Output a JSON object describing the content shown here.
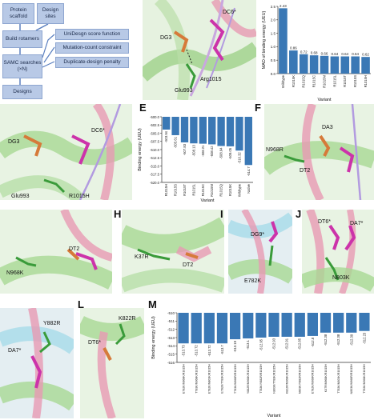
{
  "panel_letters": [
    "E",
    "F",
    "H",
    "I",
    "J",
    "L",
    "M"
  ],
  "flowchart": {
    "protein_scaffold": "Protein scaffold",
    "design_sites": "Design sites",
    "build_rotamers": "Build rotamers",
    "samc_searches": "SAMC searches (×N)",
    "designs": "Designs",
    "side_labels": [
      "UniDesgn score function",
      "Mutation-count constraint",
      "Duplicate-design penalty"
    ]
  },
  "structure_labels": {
    "b": [
      "DC6*",
      "DG3",
      "Arg1015",
      "Glu993"
    ],
    "d": [
      "DC6*",
      "DG3",
      "Glu993",
      "R1015H"
    ],
    "f": [
      "DA3",
      "N968R",
      "DT2"
    ],
    "g": [
      "DT2",
      "N968K"
    ],
    "h": [
      "K37R",
      "DT2"
    ],
    "i": [
      "DG9*",
      "E782K"
    ],
    "j": [
      "DT6*",
      "DA7*",
      "N803K"
    ],
    "k": [
      "Y882R",
      "DA7*"
    ],
    "l": [
      "K822R",
      "DT6*"
    ]
  },
  "chart_data": [
    {
      "type": "bar",
      "categories": [
        "Wildtype",
        "R1015K",
        "R1015Q",
        "R1015C",
        "R1015M",
        "R1015L",
        "R1015T",
        "R1015S",
        "R1015H"
      ],
      "values": [
        2.43,
        0.86,
        0.72,
        0.68,
        0.66,
        0.64,
        0.64,
        0.64,
        0.62
      ],
      "value_labels": [
        "2.43",
        "0.86",
        "0.72",
        "0.68",
        "0.66",
        "0.64",
        "0.64",
        "0.64",
        "0.62"
      ],
      "xlabel": "Variant",
      "ylabel": "MAD of binding energy (UEU)",
      "ylim": [
        0,
        2.5
      ],
      "yticks": [
        "0.0",
        "0.5",
        "1.0",
        "1.5",
        "2.0",
        "2.5"
      ],
      "color": "#3a78b5"
    },
    {
      "type": "bar",
      "categories": [
        "R1015H",
        "R1015S",
        "R1015T",
        "R1015L",
        "R1015C",
        "R1015M",
        "R1015Q",
        "R1015K",
        "Wildtype",
        "Native"
      ],
      "values": [
        -503.9,
        -505.6,
        -507.8,
        -508.1,
        -508.2,
        -508.4,
        -508.9,
        -509.0,
        -510.3,
        -514.7
      ],
      "value_labels": [
        "-503.94",
        "-505.61",
        "-507.83",
        "-508.13",
        "-508.21",
        "-508.42",
        "-508.94",
        "-509.05",
        "-510.32",
        "-514.7"
      ],
      "xlabel": "Variant",
      "ylabel": "Binding energy (UEU)",
      "ylim": [
        -520,
        -500
      ],
      "yticks": [
        "-500.0",
        "-502.5",
        "-505.0",
        "-507.5",
        "-510.0",
        "-512.5",
        "-515.0",
        "-517.5",
        "-520.0"
      ],
      "color": "#3a78b5"
    },
    {
      "type": "bar",
      "categories": [
        "E782K/N968K/R1015H",
        "T783K/N968K/R1015H",
        "E782K/N803K/R1015H",
        "E782K/T783K/R1015H",
        "T783K/N968R/R1015H",
        "Y882R/N968K/R1015H",
        "T783K/Y882R/R1015H",
        "N803K/T783K/R1015H",
        "K822R/N968K/R1015H",
        "N803K/Y882R/R1015H",
        "E782K/N968R/R1015H",
        "K37R/N968K/R1015H",
        "T783K/N803K/R1015H",
        "N803K/N968R/R1015H",
        "T783K/N968K/R1015H"
      ],
      "values": [
        -513.7,
        -513.7,
        -513.7,
        -513.7,
        -513.2,
        -513.1,
        -513.0,
        -512.9,
        -512.9,
        -512.9,
        -512.8,
        -512.4,
        -512.4,
        -512.4,
        -512.2
      ],
      "value_labels": [
        "-513.73",
        "-513.72",
        "-513.72",
        "-513.7",
        "-513.19",
        "-513.1",
        "-512.95",
        "-512.93",
        "-512.91",
        "-512.85",
        "-512.8",
        "-512.38",
        "-512.38",
        "-512.39",
        "-512.23"
      ],
      "xlabel": "Variant",
      "ylabel": "Binding energy (UEU)",
      "ylim": [
        -516,
        -510
      ],
      "yticks": [
        "-510",
        "-511",
        "-512",
        "-513",
        "-514",
        "-515",
        "-516"
      ],
      "color": "#3a78b5"
    }
  ]
}
